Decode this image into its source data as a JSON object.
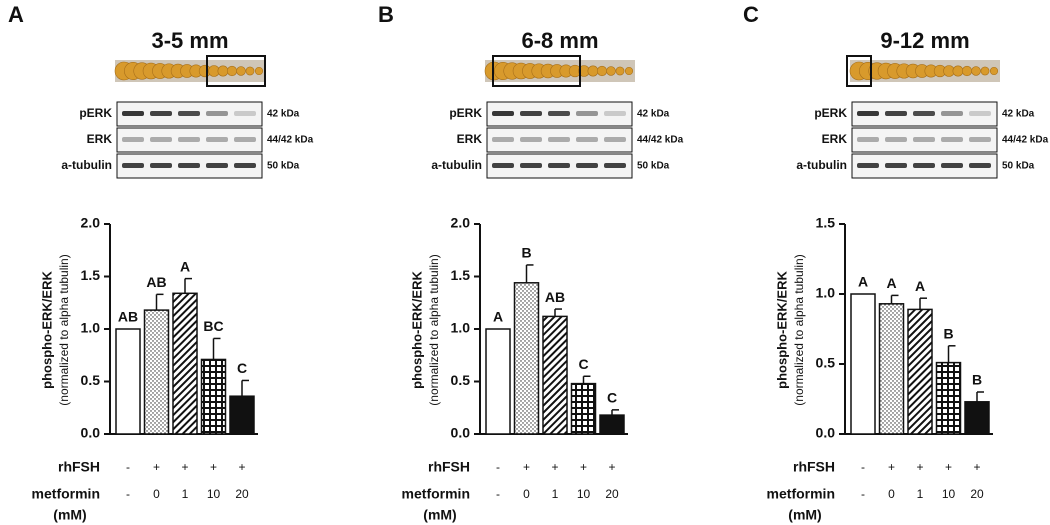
{
  "chart_data": [
    {
      "type": "bar",
      "panel": "A",
      "title": "3-5 mm",
      "blot": {
        "bands": [
          "pERK",
          "ERK",
          "a-tubulin"
        ],
        "sizes": [
          "42 kDa",
          "44/42 kDa",
          "50 kDa"
        ]
      },
      "y_label": [
        "phospho-ERK/ERK",
        "(normalized to alpha tubulin)"
      ],
      "values": [
        1.0,
        1.18,
        1.34,
        0.71,
        0.36
      ],
      "errors": [
        0,
        0.15,
        0.14,
        0.2,
        0.15
      ],
      "annotations": [
        "AB",
        "AB",
        "A",
        "BC",
        "C"
      ],
      "fills": [
        "white",
        "dots",
        "hatch",
        "grid",
        "black"
      ],
      "ylim": [
        0,
        2
      ],
      "yticks": [
        {
          "value": 0,
          "label": "0.0"
        },
        0.5,
        {
          "value": 1,
          "label": "1.0"
        },
        1.5,
        {
          "value": 2,
          "label": "2.0"
        }
      ],
      "treatments": [
        {
          "name": "rhFSH",
          "levels": [
            "-",
            "+",
            "+",
            "+",
            "+"
          ]
        },
        {
          "name": "metformin",
          "unit": "(mM)",
          "levels": [
            "-",
            "0",
            "1",
            "10",
            "20"
          ]
        }
      ]
    },
    {
      "type": "bar",
      "panel": "B",
      "title": "6-8 mm",
      "blot": {
        "bands": [
          "pERK",
          "ERK",
          "a-tubulin"
        ],
        "sizes": [
          "42 kDa",
          "44/42 kDa",
          "50 kDa"
        ]
      },
      "y_label": [
        "phospho-ERK/ERK",
        "(normalized to alpha tubulin)"
      ],
      "values": [
        1.0,
        1.44,
        1.12,
        0.48,
        0.18
      ],
      "errors": [
        0,
        0.17,
        0.07,
        0.07,
        0.05
      ],
      "annotations": [
        "A",
        "B",
        "AB",
        "C",
        "C"
      ],
      "fills": [
        "white",
        "dots",
        "hatch",
        "grid",
        "black"
      ],
      "ylim": [
        0,
        2
      ],
      "yticks": [
        {
          "value": 0,
          "label": "0.0"
        },
        0.5,
        {
          "value": 1,
          "label": "1.0"
        },
        1.5,
        {
          "value": 2,
          "label": "2.0"
        }
      ],
      "treatments": [
        {
          "name": "rhFSH",
          "levels": [
            "-",
            "+",
            "+",
            "+",
            "+"
          ]
        },
        {
          "name": "metformin",
          "unit": "(mM)",
          "levels": [
            "-",
            "0",
            "1",
            "10",
            "20"
          ]
        }
      ]
    },
    {
      "type": "bar",
      "panel": "C",
      "title": "9-12 mm",
      "blot": {
        "bands": [
          "pERK",
          "ERK",
          "a-tubulin"
        ],
        "sizes": [
          "42 kDa",
          "44/42 kDa",
          "50 kDa"
        ]
      },
      "y_label": [
        "phospho-ERK/ERK",
        "(normalized to alpha tubulin)"
      ],
      "values": [
        1.0,
        0.93,
        0.89,
        0.51,
        0.23
      ],
      "errors": [
        0,
        0.06,
        0.08,
        0.12,
        0.07
      ],
      "annotations": [
        "A",
        "A",
        "A",
        "B",
        "B"
      ],
      "fills": [
        "white",
        "dots",
        "hatch",
        "grid",
        "black"
      ],
      "ylim": [
        0,
        1.5
      ],
      "yticks": [
        {
          "value": 0,
          "label": "0.0"
        },
        0.5,
        {
          "value": 1,
          "label": "1.0"
        },
        1.5
      ],
      "treatments": [
        {
          "name": "rhFSH",
          "levels": [
            "-",
            "+",
            "+",
            "+",
            "+"
          ]
        },
        {
          "name": "metformin",
          "unit": "(mM)",
          "levels": [
            "-",
            "0",
            "1",
            "10",
            "20"
          ]
        }
      ]
    }
  ]
}
